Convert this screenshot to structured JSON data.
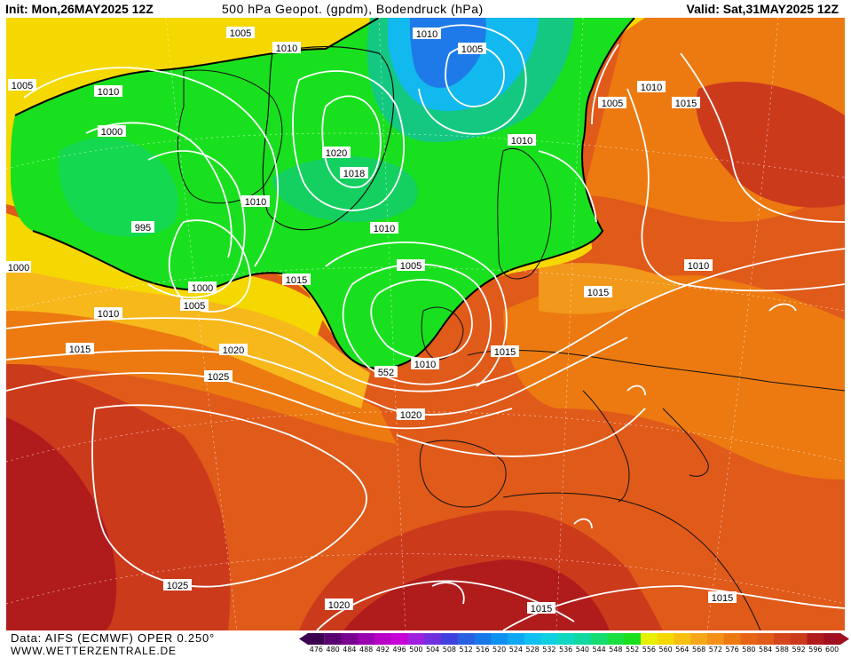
{
  "header": {
    "init": "Init: Mon,26MAY2025 12Z",
    "title": "500 hPa Geopot. (gpdm), Bodendruck (hPa)",
    "valid": "Valid: Sat,31MAY2025 12Z"
  },
  "footer": {
    "source": "Data: AIFS (ECMWF) OPER 0.250°",
    "site": "WWW.WETTERZENTRALE.DE"
  },
  "colors": {
    "deep_red": "#b01c1c",
    "red": "#cc3a1c",
    "orange_red": "#e05a1a",
    "orange": "#ec7a10",
    "light_orange": "#f2981a",
    "amber": "#f7b81c",
    "yellow": "#f5d800",
    "green": "#19e01e",
    "teal": "#14c882",
    "cyan": "#12b9ee",
    "blue": "#1e7ae8"
  },
  "legend": {
    "ticks": [
      "476",
      "480",
      "484",
      "488",
      "492",
      "496",
      "500",
      "504",
      "508",
      "512",
      "516",
      "520",
      "524",
      "528",
      "532",
      "536",
      "540",
      "544",
      "548",
      "552",
      "556",
      "560",
      "564",
      "568",
      "572",
      "576",
      "580",
      "584",
      "588",
      "592",
      "596",
      "600"
    ],
    "colors": [
      "#3c0050",
      "#5a0070",
      "#7a0090",
      "#9800b0",
      "#b800c8",
      "#c800d8",
      "#a020e0",
      "#7030e0",
      "#4040e0",
      "#2860e0",
      "#1878e8",
      "#1090f0",
      "#10a8f0",
      "#10c0f0",
      "#10d0e0",
      "#10d8c0",
      "#10d8a0",
      "#14dc70",
      "#18e040",
      "#19e01e",
      "#e6f000",
      "#f5d800",
      "#f7c010",
      "#f5a818",
      "#f29018",
      "#ec7a10",
      "#e66414",
      "#e05a1a",
      "#d4461c",
      "#cc3a1c",
      "#b01c1c",
      "#a01020"
    ]
  },
  "contour_labels": [
    "1005",
    "1010",
    "1010",
    "1005",
    "1010",
    "1005",
    "1000",
    "1020",
    "1018",
    "1010",
    "995",
    "1010",
    "1005",
    "1015",
    "1000",
    "1005",
    "1000",
    "1010",
    "1010",
    "1015",
    "1005",
    "1010",
    "1015",
    "1010",
    "1015",
    "1020",
    "1025",
    "552",
    "1010",
    "1015",
    "1020",
    "1025",
    "1020",
    "1015",
    "1015"
  ]
}
